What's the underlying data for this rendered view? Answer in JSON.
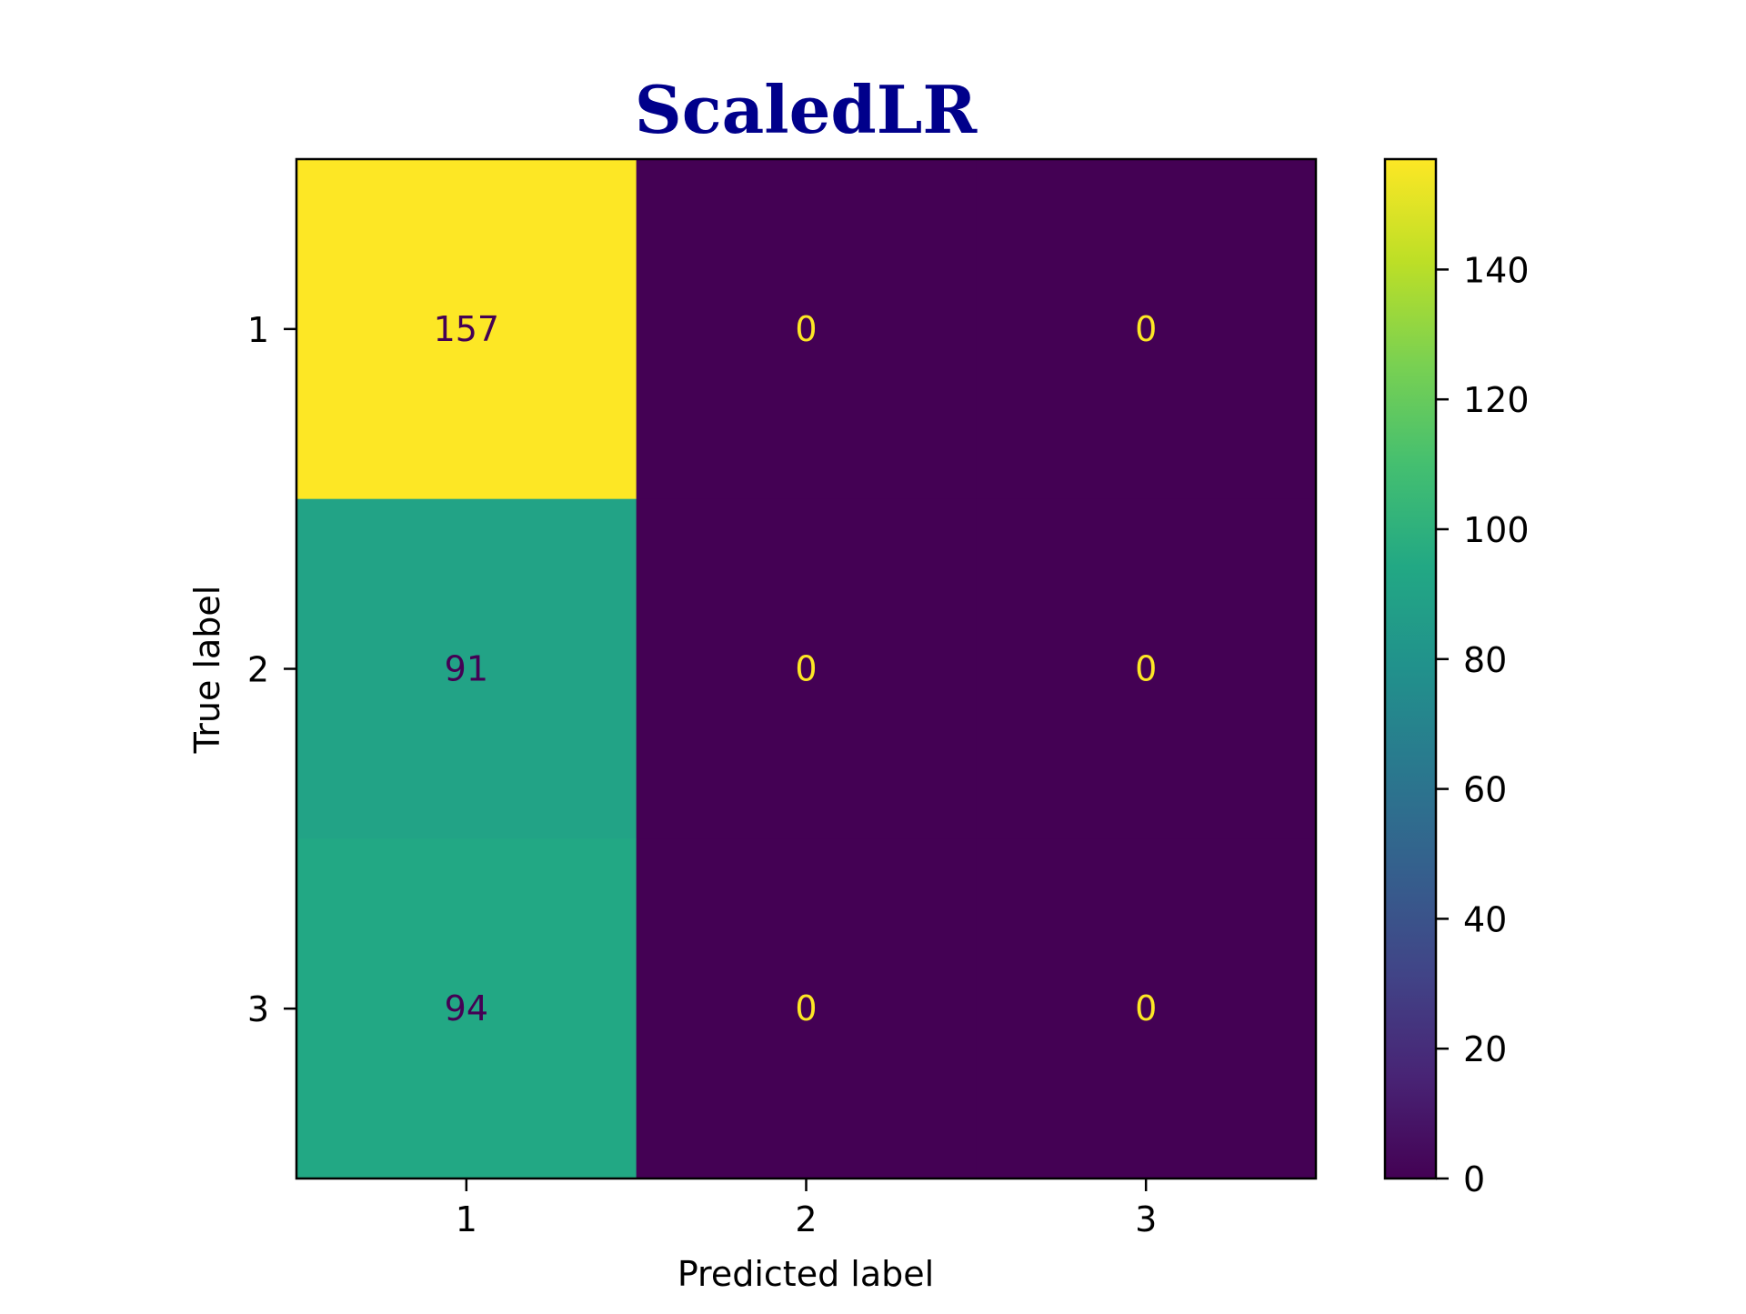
{
  "chart_data": {
    "type": "heatmap",
    "title": "ScaledLR",
    "title_color": "#00008b",
    "xlabel": "Predicted label",
    "ylabel": "True label",
    "x_categories": [
      "1",
      "2",
      "3"
    ],
    "y_categories": [
      "1",
      "2",
      "3"
    ],
    "matrix": [
      [
        157,
        0,
        0
      ],
      [
        91,
        0,
        0
      ],
      [
        94,
        0,
        0
      ]
    ],
    "colormap": "viridis",
    "colorbar": {
      "min": 0,
      "max": 157,
      "ticks": [
        0,
        20,
        40,
        60,
        80,
        100,
        120,
        140
      ]
    },
    "grid": false
  }
}
